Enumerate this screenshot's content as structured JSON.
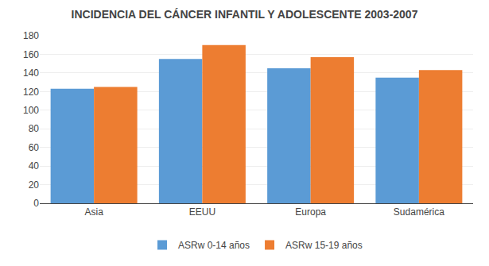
{
  "chart_data": {
    "type": "bar",
    "title": "INCIDENCIA DEL CÁNCER INFANTIL Y ADOLESCENTE 2003-2007",
    "categories": [
      "Asia",
      "EEUU",
      "Europa",
      "Sudamérica"
    ],
    "series": [
      {
        "name": "ASRw 0-14 años",
        "color": "#5B9BD5",
        "values": [
          123,
          155,
          145,
          135
        ]
      },
      {
        "name": "ASRw 15-19 años",
        "color": "#ED7D31",
        "values": [
          125,
          170,
          157,
          143
        ]
      }
    ],
    "ylim": [
      0,
      180
    ],
    "yticks": [
      0,
      20,
      40,
      60,
      80,
      100,
      120,
      140,
      160,
      180
    ],
    "grid": true,
    "legend": "bottom"
  }
}
